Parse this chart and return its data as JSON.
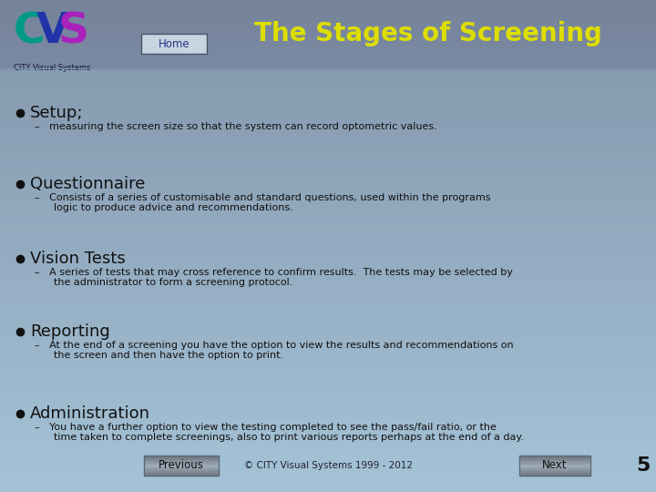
{
  "title": "The Stages of Screening",
  "title_color": "#dddd00",
  "title_fontsize": 20,
  "logo_C_color": "#009988",
  "logo_V_color": "#2233aa",
  "logo_S_color": "#aa22bb",
  "logo_text": "CITY Visual Systems",
  "home_label": "Home",
  "bullets": [
    {
      "heading": "Setup;",
      "sub": "measuring the screen size so that the system can record optometric values."
    },
    {
      "heading": "Questionnaire",
      "sub": "Consists of a series of customisable and standard questions, used within the programs\nlogic to produce advice and recommendations."
    },
    {
      "heading": "Vision Tests",
      "sub": "A series of tests that may cross reference to confirm results.  The tests may be selected by\nthe administrator to form a screening protocol."
    },
    {
      "heading": "Reporting",
      "sub": "At the end of a screening you have the option to view the results and recommendations on\nthe screen and then have the option to print."
    },
    {
      "heading": "Administration",
      "sub": "You have a further option to view the testing completed to see the pass/fail ratio, or the\ntime taken to complete screenings, also to print various reports perhaps at the end of a day."
    }
  ],
  "footer_text": "© CITY Visual Systems 1999 - 2012",
  "page_number": "5",
  "prev_label": "Previous",
  "next_label": "Next",
  "heading_fontsize": 13,
  "sub_fontsize": 8,
  "bullet_color": "#111111",
  "text_color": "#111111"
}
